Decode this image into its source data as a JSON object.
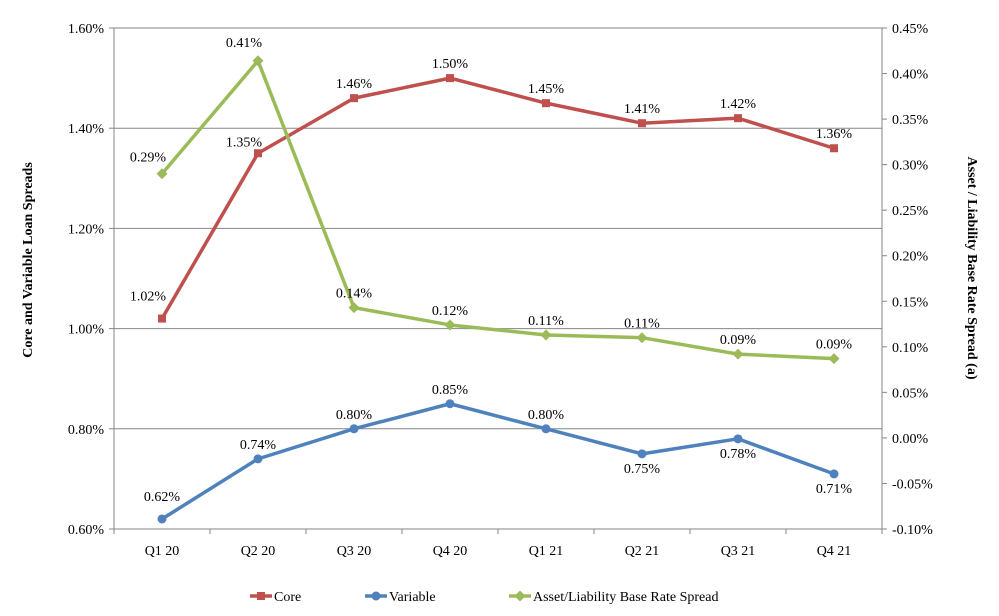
{
  "chart_data": {
    "type": "line",
    "categories": [
      "Q1 20",
      "Q2 20",
      "Q3 20",
      "Q4 20",
      "Q1 21",
      "Q2 21",
      "Q3 21",
      "Q4 21"
    ],
    "y_left": {
      "label": "Core and Variable Loan Spreads",
      "range": [
        0.6,
        1.6
      ],
      "ticks": [
        0.6,
        0.8,
        1.0,
        1.2,
        1.4,
        1.6
      ],
      "tick_labels": [
        "0.60%",
        "0.80%",
        "1.00%",
        "1.20%",
        "1.40%",
        "1.60%"
      ]
    },
    "y_right": {
      "label": "Asset / Liability Base Rate Spread (a)",
      "range": [
        -0.1,
        0.45
      ],
      "ticks": [
        -0.1,
        -0.05,
        0.0,
        0.05,
        0.1,
        0.15,
        0.2,
        0.25,
        0.3,
        0.35,
        0.4,
        0.45
      ],
      "tick_labels": [
        "-0.10%",
        "-0.05%",
        "0.00%",
        "0.05%",
        "0.10%",
        "0.15%",
        "0.20%",
        "0.25%",
        "0.30%",
        "0.35%",
        "0.40%",
        "0.45%"
      ]
    },
    "gridlines": "horizontal at left-axis ticks",
    "legend_position": "bottom",
    "series": [
      {
        "name": "Core",
        "axis": "left",
        "marker": "square",
        "color": "#C0504D",
        "values": [
          1.02,
          1.35,
          1.46,
          1.5,
          1.45,
          1.41,
          1.42,
          1.36
        ],
        "labels": [
          "1.02%",
          "1.35%",
          "1.46%",
          "1.50%",
          "1.45%",
          "1.41%",
          "1.42%",
          "1.36%"
        ]
      },
      {
        "name": "Variable",
        "axis": "left",
        "marker": "circle",
        "color": "#4F81BD",
        "values": [
          0.62,
          0.74,
          0.8,
          0.85,
          0.8,
          0.75,
          0.78,
          0.71
        ],
        "labels": [
          "0.62%",
          "0.74%",
          "0.80%",
          "0.85%",
          "0.80%",
          "0.75%",
          "0.78%",
          "0.71%"
        ]
      },
      {
        "name": "Asset/Liability Base Rate Spread",
        "axis": "right",
        "marker": "diamond",
        "color": "#9BBB59",
        "values": [
          0.29,
          0.414,
          0.143,
          0.124,
          0.113,
          0.11,
          0.092,
          0.087
        ],
        "labels": [
          "0.29%",
          "0.41%",
          "0.14%",
          "0.12%",
          "0.11%",
          "0.11%",
          "0.09%",
          "0.09%"
        ]
      }
    ]
  }
}
